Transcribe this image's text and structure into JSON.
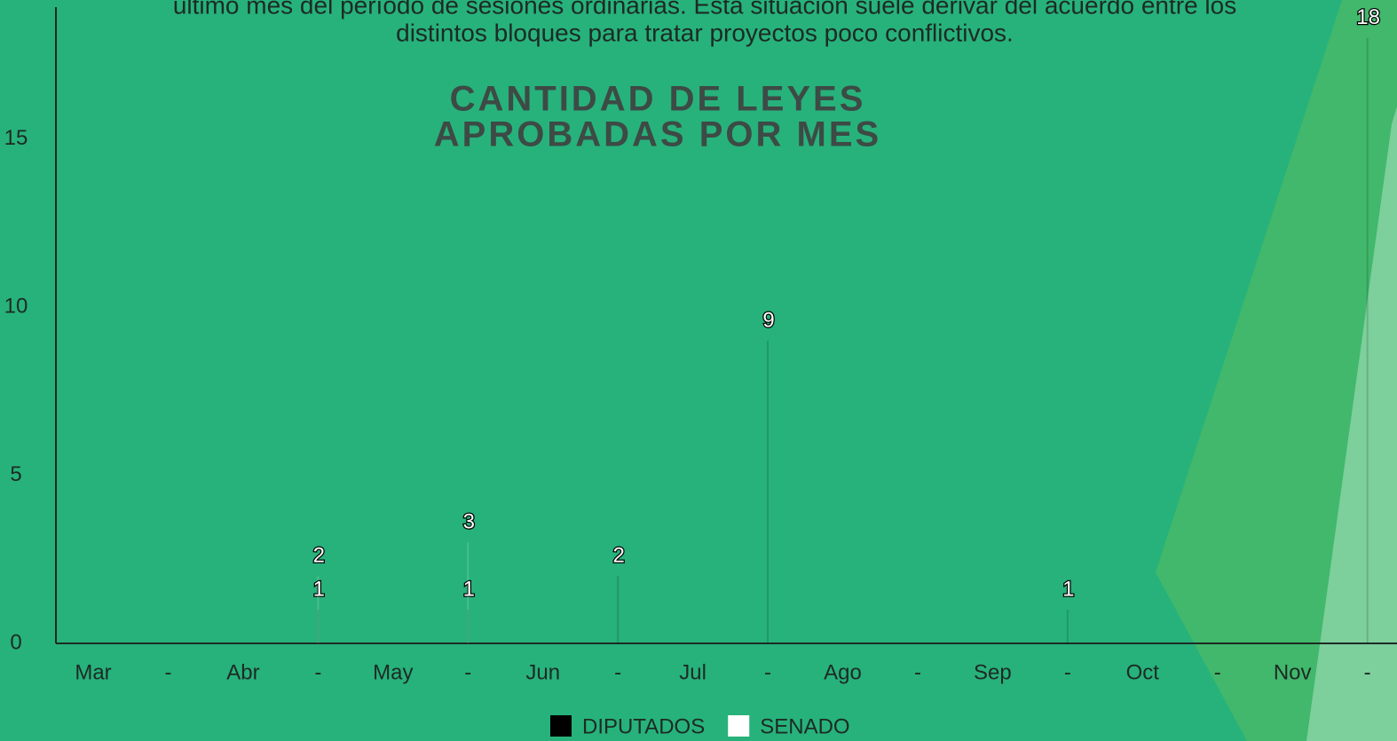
{
  "chart_data": {
    "type": "bar",
    "annotations": [
      "último mes del período de sesiones ordinarias. Esta situación suele derivar del acuerdo entre los",
      "distintos bloques para tratar proyectos poco conflictivos."
    ],
    "title": [
      "CANTIDAD DE LEYES",
      "APROBADAS POR MES"
    ],
    "categories": [
      "Mar",
      "-",
      "Abr",
      "-",
      "May",
      "-",
      "Jun",
      "-",
      "Jul",
      "-",
      "Ago",
      "-",
      "Sep",
      "-",
      "Oct",
      "-",
      "Nov",
      "-"
    ],
    "series": [
      {
        "name": "DIPUTADOS",
        "color": "#000000",
        "values": [
          null,
          null,
          null,
          1,
          null,
          1,
          null,
          2,
          null,
          9,
          null,
          null,
          null,
          1,
          null,
          null,
          null,
          18
        ]
      },
      {
        "name": "SENADO",
        "color": "#ffffff",
        "values": [
          null,
          null,
          null,
          2,
          null,
          3,
          null,
          null,
          null,
          null,
          null,
          null,
          null,
          null,
          null,
          null,
          null,
          null
        ]
      }
    ],
    "ylim": [
      0,
      19
    ],
    "yticks": [
      0,
      5,
      10,
      15
    ],
    "grid": false,
    "legend": "bottom"
  }
}
